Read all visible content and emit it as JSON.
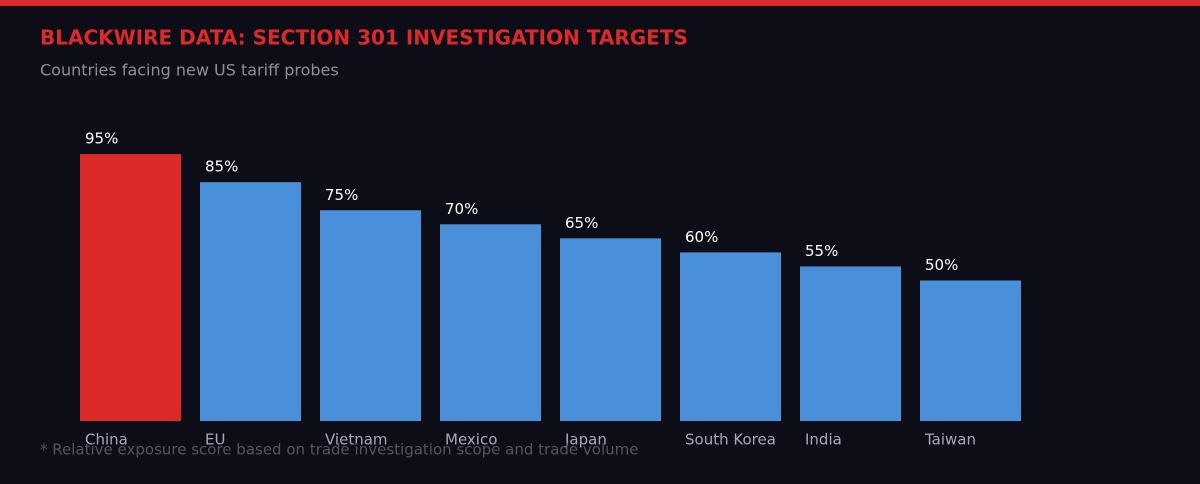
{
  "chart_data": {
    "type": "bar",
    "title": "BLACKWIRE DATA: SECTION 301 INVESTIGATION TARGETS",
    "subtitle": "Countries facing new US tariff probes",
    "categories": [
      "China",
      "EU",
      "Vietnam",
      "Mexico",
      "Japan",
      "South Korea",
      "India",
      "Taiwan"
    ],
    "values": [
      95,
      85,
      75,
      70,
      65,
      60,
      55,
      50
    ],
    "value_labels": [
      "95%",
      "85%",
      "75%",
      "70%",
      "65%",
      "60%",
      "55%",
      "50%"
    ],
    "colors": [
      "#dc2a2a",
      "#4a8fd9",
      "#4a8fd9",
      "#4a8fd9",
      "#4a8fd9",
      "#4a8fd9",
      "#4a8fd9",
      "#4a8fd9"
    ],
    "ylim": [
      0,
      100
    ],
    "footnote": "* Relative exposure score based on trade investigation scope and trade volume"
  }
}
